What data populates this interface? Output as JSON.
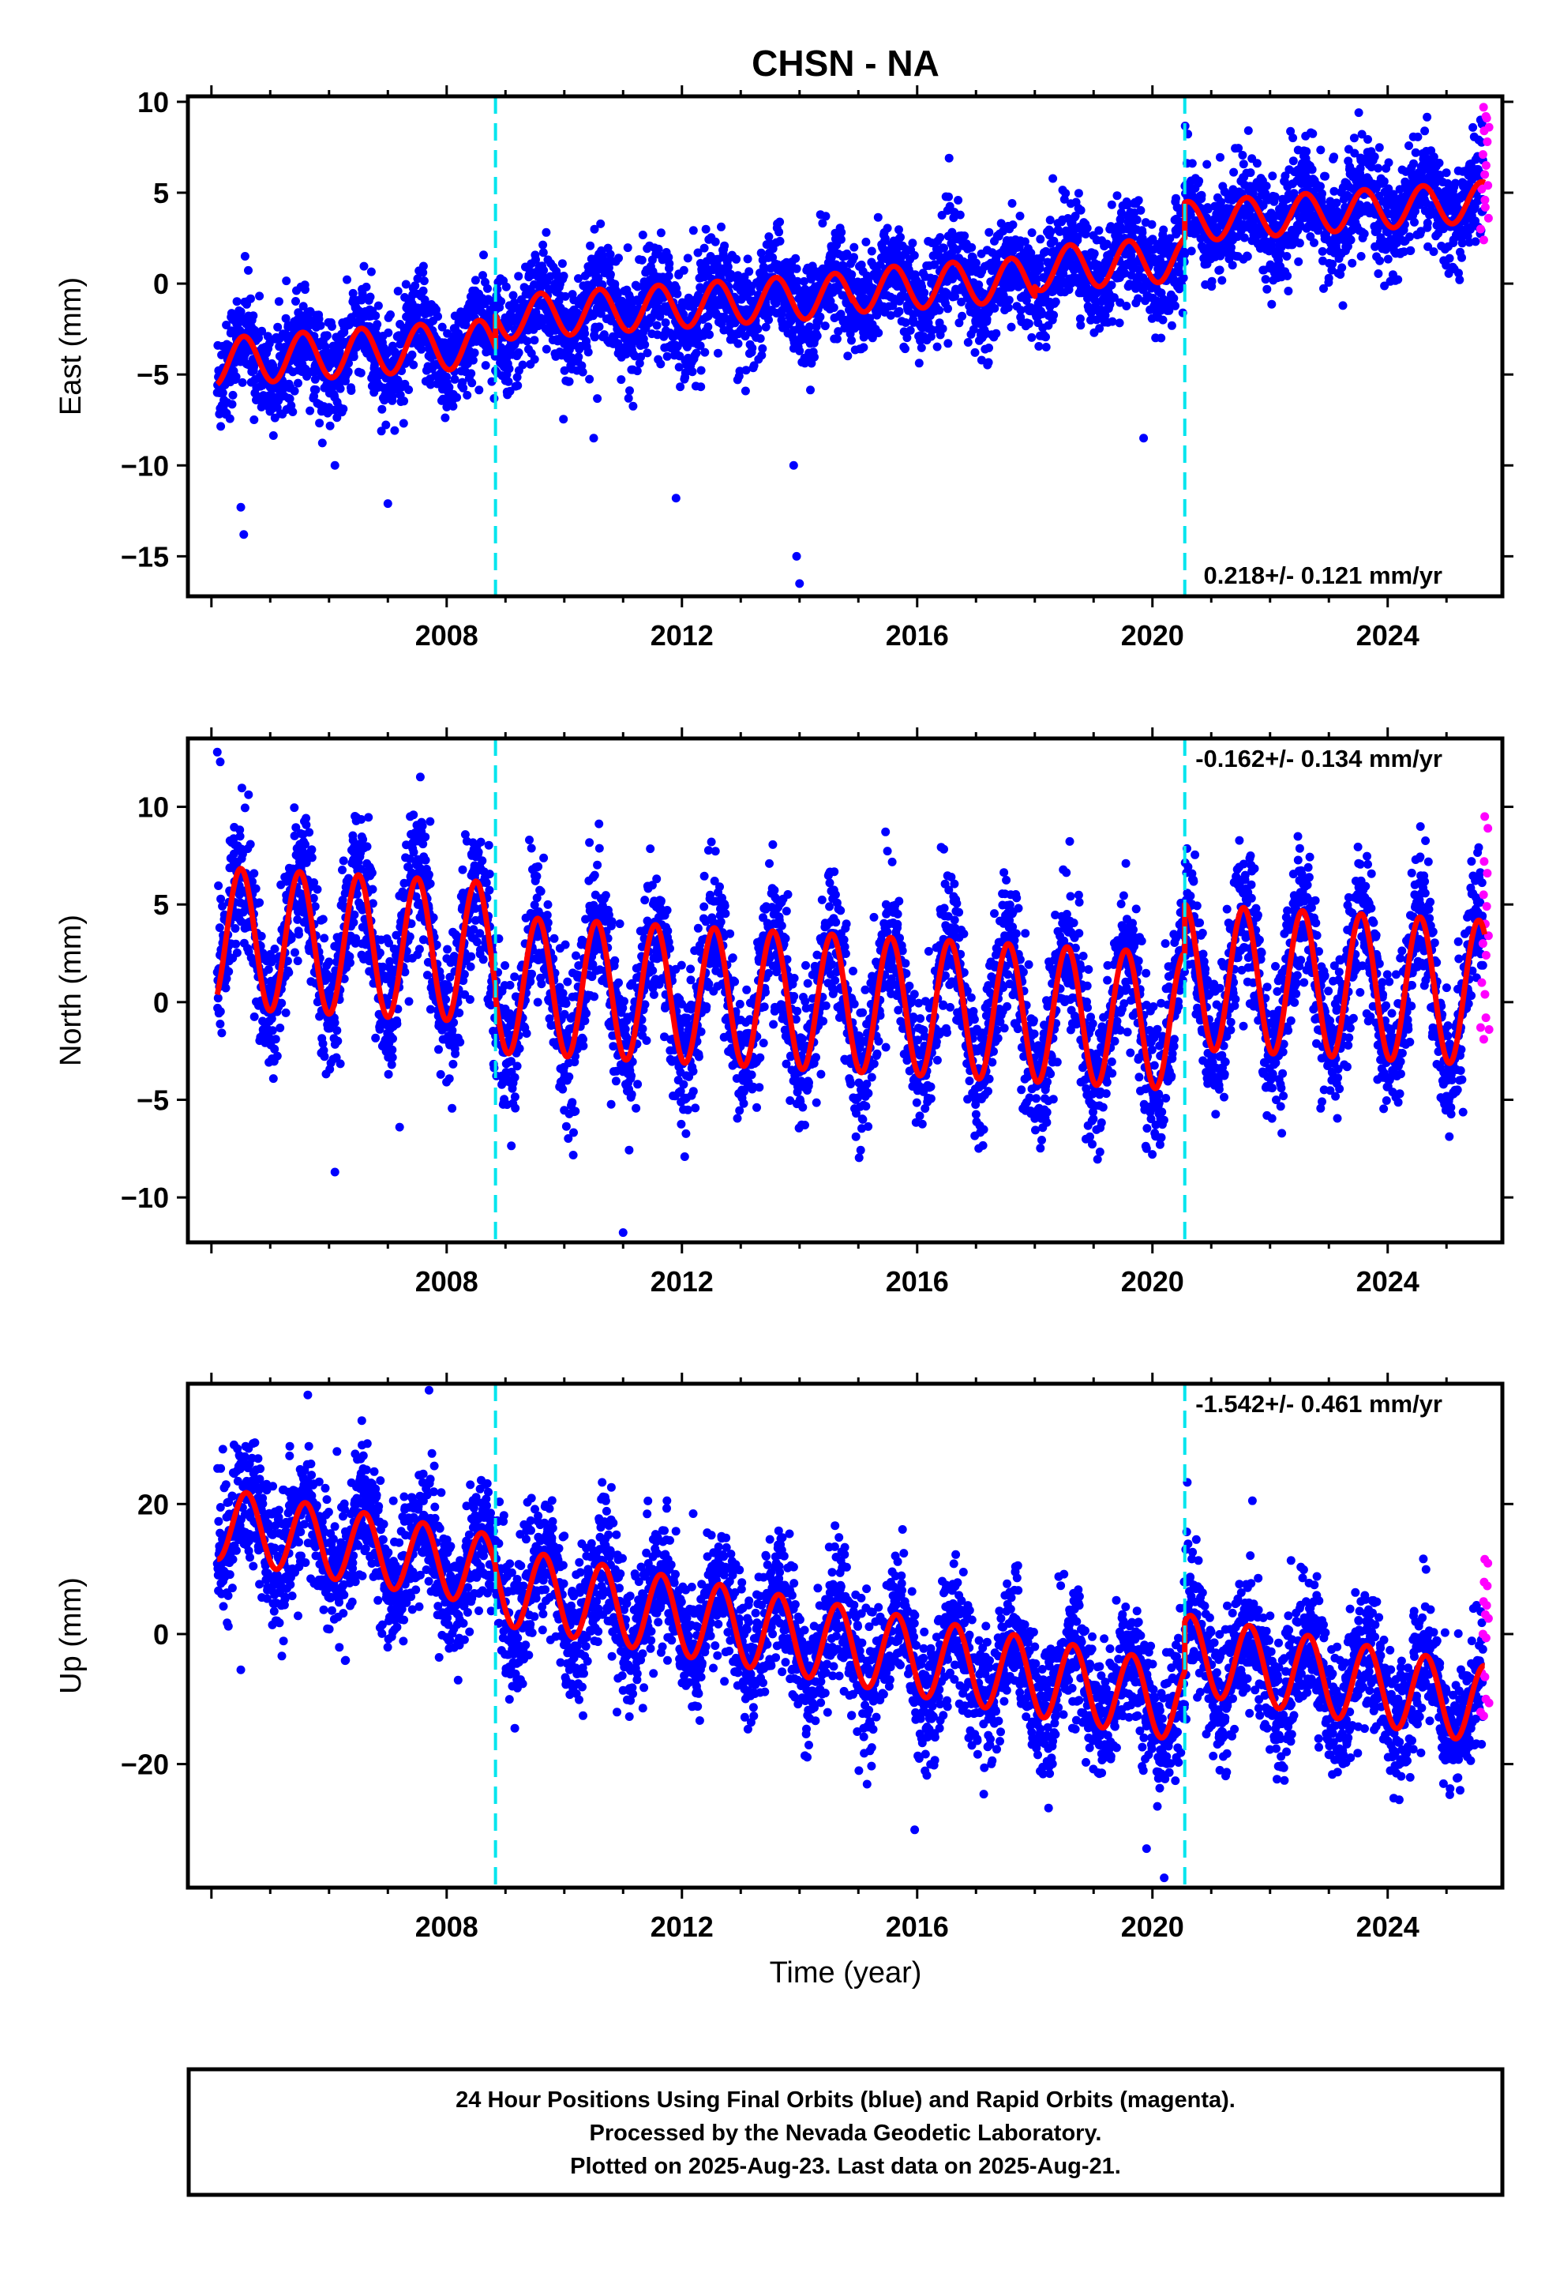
{
  "title": "CHSN - NA",
  "xlabel": "Time (year)",
  "x_tick_labels": [
    "2008",
    "2012",
    "2016",
    "2020",
    "2024"
  ],
  "colors": {
    "final_orbits": "#0000ff",
    "rapid_orbits": "#ff00ff",
    "model_fit": "#ff0000",
    "offset_lines": "#00e5ee"
  },
  "footer": {
    "line1": "24 Hour Positions Using Final Orbits (blue) and Rapid Orbits (magenta).",
    "line2": "Processed by the Nevada Geodetic Laboratory.",
    "line3": "Plotted on 2025-Aug-23. Last data on 2025-Aug-21."
  },
  "chart_data": [
    {
      "type": "scatter",
      "ylabel": "East (mm)",
      "rate_label": "0.218+/- 0.121 mm/yr",
      "rate_position": "bottom-right",
      "xlim": [
        2003.6,
        2025.95
      ],
      "ylim": [
        -17.2,
        10.3
      ],
      "y_ticks": [
        10,
        5,
        0,
        -5,
        -10,
        -15
      ],
      "y_tick_labels": [
        "10",
        "5",
        "0",
        "−10",
        "−15"
      ],
      "y_tick_labels_full": [
        "10",
        "5",
        "0",
        "−5",
        "−10",
        "−15"
      ],
      "offset_epochs": [
        2008.83,
        2020.55
      ],
      "fit_segments": [
        {
          "x0": 2004.1,
          "x1": 2008.83,
          "base_at_x0": -4.3,
          "rate": 0.218,
          "annual_amp": 1.3,
          "phase_peak": 0.55
        },
        {
          "x0": 2008.83,
          "x1": 2014.9,
          "base_at_x0": -1.9,
          "rate": 0.218,
          "annual_amp": 1.2,
          "phase_peak": 0.6
        },
        {
          "x0": 2014.9,
          "x1": 2018.0,
          "base_at_x0": -0.4,
          "rate": 0.218,
          "annual_amp": 1.2,
          "phase_peak": 0.6
        },
        {
          "x0": 2018.0,
          "x1": 2020.55,
          "base_at_x0": 0.8,
          "rate": 0.218,
          "annual_amp": 1.2,
          "phase_peak": 0.6
        },
        {
          "x0": 2020.55,
          "x1": 2025.65,
          "base_at_x0": 3.4,
          "rate": 0.218,
          "annual_amp": 1.1,
          "phase_peak": 0.6
        }
      ],
      "scatter_noise": 1.4,
      "outliers": [
        [
          2004.5,
          -12.3
        ],
        [
          2004.55,
          -13.8
        ],
        [
          2006.1,
          -10.0
        ],
        [
          2007.0,
          -12.1
        ],
        [
          2010.5,
          -8.5
        ],
        [
          2011.9,
          -11.8
        ],
        [
          2013.9,
          -10.0
        ],
        [
          2013.95,
          -15.0
        ],
        [
          2014.0,
          -16.5
        ],
        [
          2019.85,
          -8.5
        ]
      ],
      "rapid_points": [
        [
          2025.58,
          3.0
        ],
        [
          2025.6,
          5.2
        ],
        [
          2025.62,
          7.1
        ],
        [
          2025.63,
          9.7
        ],
        [
          2025.64,
          8.4
        ],
        [
          2025.65,
          6.0
        ],
        [
          2025.66,
          4.2
        ],
        [
          2025.67,
          9.2
        ]
      ]
    },
    {
      "type": "scatter",
      "ylabel": "North (mm)",
      "rate_label": "-0.162+/- 0.134 mm/yr",
      "rate_position": "top-right",
      "xlim": [
        2003.6,
        2025.95
      ],
      "ylim": [
        -12.3,
        13.5
      ],
      "y_ticks": [
        10,
        5,
        0,
        -5,
        -10
      ],
      "y_tick_labels": [
        "10",
        "5",
        "0",
        "−5",
        "−10"
      ],
      "offset_epochs": [
        2008.83,
        2020.55
      ],
      "fit_segments": [
        {
          "x0": 2004.1,
          "x1": 2008.83,
          "base_at_x0": 3.3,
          "rate": -0.162,
          "annual_amp": 3.6,
          "phase_peak": 0.5
        },
        {
          "x0": 2008.83,
          "x1": 2020.55,
          "base_at_x0": 0.9,
          "rate": -0.162,
          "annual_amp": 3.5,
          "phase_peak": 0.55
        },
        {
          "x0": 2020.55,
          "x1": 2025.65,
          "base_at_x0": 1.3,
          "rate": -0.162,
          "annual_amp": 3.7,
          "phase_peak": 0.55
        }
      ],
      "scatter_noise": 1.8,
      "outliers": [
        [
          2004.1,
          12.8
        ],
        [
          2004.15,
          12.3
        ],
        [
          2006.1,
          -8.7
        ],
        [
          2007.2,
          -6.4
        ],
        [
          2011.0,
          -11.8
        ],
        [
          2019.9,
          -7.5
        ]
      ],
      "rapid_points": [
        [
          2025.58,
          -1.3
        ],
        [
          2025.6,
          1.0
        ],
        [
          2025.62,
          3.0
        ],
        [
          2025.63,
          5.5
        ],
        [
          2025.64,
          7.2
        ],
        [
          2025.65,
          9.5
        ],
        [
          2025.66,
          4.0
        ],
        [
          2025.67,
          -0.8
        ]
      ]
    },
    {
      "type": "scatter",
      "ylabel": "Up (mm)",
      "rate_label": "-1.542+/- 0.461 mm/yr",
      "rate_position": "top-right",
      "xlim": [
        2003.6,
        2025.95
      ],
      "ylim": [
        -39.0,
        38.5
      ],
      "y_ticks": [
        20,
        0,
        -20
      ],
      "y_tick_labels": [
        "20",
        "0",
        "−20"
      ],
      "offset_epochs": [
        2008.83,
        2020.55
      ],
      "fit_segments": [
        {
          "x0": 2004.1,
          "x1": 2008.83,
          "base_at_x0": 17.0,
          "rate": -1.542,
          "annual_amp": 5.5,
          "phase_peak": 0.6
        },
        {
          "x0": 2008.83,
          "x1": 2020.55,
          "base_at_x0": 7.5,
          "rate": -1.542,
          "annual_amp": 6.0,
          "phase_peak": 0.65
        },
        {
          "x0": 2020.55,
          "x1": 2025.65,
          "base_at_x0": -3.0,
          "rate": -1.542,
          "annual_amp": 6.0,
          "phase_peak": 0.65
        }
      ],
      "scatter_noise": 5.0,
      "outliers": [
        [
          2007.7,
          37.5
        ],
        [
          2004.5,
          -5.5
        ],
        [
          2021.7,
          20.5
        ],
        [
          2020.2,
          -37.5
        ],
        [
          2019.9,
          -33.0
        ]
      ],
      "rapid_points": [
        [
          2025.58,
          -12.0
        ],
        [
          2025.6,
          -6.0
        ],
        [
          2025.62,
          0.0
        ],
        [
          2025.63,
          5.0
        ],
        [
          2025.64,
          8.0
        ],
        [
          2025.65,
          11.5
        ],
        [
          2025.66,
          3.0
        ],
        [
          2025.67,
          -10.0
        ]
      ]
    }
  ]
}
